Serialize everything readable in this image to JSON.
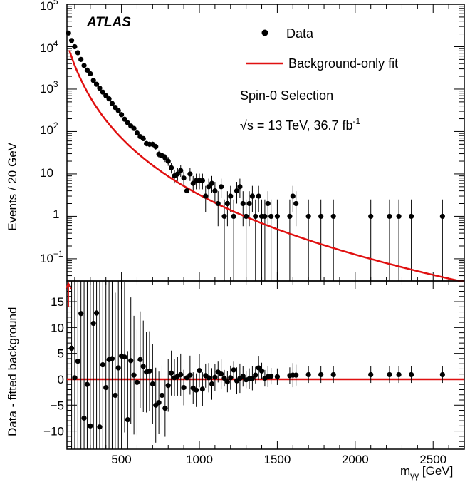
{
  "chart_data": [
    {
      "type": "scatter",
      "panel": "main",
      "scale_y": "log",
      "ylabel": "Events / 20 GeV",
      "xlim": [
        150,
        2700
      ],
      "ylim": [
        0.03,
        100000
      ],
      "ytick_labels": {
        "tick_100k": {
          "base": "10",
          "exp": "5"
        },
        "tick_10k": {
          "base": "10",
          "exp": "4"
        },
        "tick_1k": {
          "base": "10",
          "exp": "3"
        },
        "tick_100": {
          "base": "10",
          "exp": "2"
        },
        "tick_10": "10",
        "tick_1": "1",
        "tick_0p1": {
          "base": "10",
          "exp": "−1"
        }
      },
      "experiment_label": "ATLAS",
      "legend": {
        "data": "Data",
        "fit": "Background-only fit"
      },
      "selection_text": "Spin-0 Selection",
      "energy_label": {
        "sqrt_sym": "√",
        "s_eq": "s = 13 TeV, 36.7 fb",
        "exp": "-1"
      },
      "fit_params": {
        "A": 20000,
        "x0": 150,
        "b": 10.5,
        "c": 0.62
      },
      "series": [
        {
          "name": "Data",
          "x": [
            160,
            180,
            200,
            220,
            240,
            260,
            280,
            300,
            320,
            340,
            360,
            380,
            400,
            420,
            440,
            460,
            480,
            500,
            520,
            540,
            560,
            580,
            600,
            620,
            640,
            660,
            680,
            700,
            720,
            740,
            760,
            780,
            800,
            820,
            840,
            860,
            880,
            900,
            920,
            940,
            960,
            980,
            1000,
            1020,
            1040,
            1060,
            1080,
            1100,
            1120,
            1140,
            1160,
            1180,
            1200,
            1220,
            1240,
            1260,
            1280,
            1300,
            1320,
            1340,
            1360,
            1380,
            1400,
            1420,
            1440,
            1460,
            1500,
            1580,
            1600,
            1620,
            1700,
            1780,
            1860,
            2100,
            2220,
            2280,
            2360,
            2560
          ],
          "y": [
            21000,
            14000,
            10000,
            7200,
            5000,
            3600,
            2800,
            2300,
            1600,
            1300,
            1050,
            850,
            700,
            590,
            460,
            370,
            310,
            250,
            195,
            160,
            135,
            118,
            92,
            76,
            68,
            52,
            50,
            50,
            44,
            29,
            27,
            24,
            20,
            14,
            9,
            10,
            12,
            8,
            4,
            10,
            6,
            7,
            7,
            7,
            3,
            5,
            6,
            4,
            2,
            5,
            1,
            2,
            3,
            1,
            4,
            5,
            2,
            1,
            2,
            3,
            1,
            3,
            1,
            1,
            2,
            1,
            1,
            1,
            3,
            2,
            1,
            1,
            1,
            1,
            1,
            1,
            1,
            1
          ],
          "color": "#000000"
        },
        {
          "name": "Background-only fit",
          "type": "line",
          "color": "#e01010"
        }
      ]
    },
    {
      "type": "scatter",
      "panel": "residual",
      "ylabel": "Data - fitted background",
      "xlabel": "m",
      "xlabel_sub": "γγ",
      "xlabel_unit": " [GeV]",
      "xlim": [
        150,
        2700
      ],
      "ylim": [
        -13.5,
        19
      ],
      "xtick_labels": [
        "500",
        "1000",
        "1500",
        "2000",
        "2500"
      ],
      "xticks": [
        500,
        1000,
        1500,
        2000,
        2500
      ],
      "ytick_labels": [
        "15",
        "10",
        "5",
        "0",
        "−5",
        "−10"
      ],
      "yticks": [
        15,
        10,
        5,
        0,
        -5,
        -10
      ],
      "arrow_x": 160,
      "arrow_color": "#e01010",
      "zero_line_color": "#e01010",
      "series": [
        {
          "name": "Data",
          "x": [
            180,
            200,
            220,
            240,
            260,
            280,
            300,
            320,
            340,
            360,
            380,
            400,
            420,
            440,
            460,
            480,
            500,
            520,
            540,
            560,
            580,
            600,
            620,
            640,
            660,
            680,
            700,
            720,
            740,
            760,
            780,
            800,
            820,
            840,
            860,
            880,
            900,
            920,
            940,
            960,
            980,
            1000,
            1020,
            1040,
            1060,
            1080,
            1100,
            1120,
            1140,
            1160,
            1180,
            1200,
            1220,
            1240,
            1260,
            1280,
            1300,
            1320,
            1340,
            1360,
            1380,
            1400,
            1420,
            1440,
            1460,
            1500,
            1580,
            1600,
            1620,
            1700,
            1780,
            1860,
            2100,
            2220,
            2280,
            2360,
            2560
          ],
          "y": [
            6,
            0.3,
            3.5,
            12.7,
            -7.5,
            -1,
            -9,
            10.8,
            12.8,
            -9.2,
            2.8,
            -1.6,
            3.8,
            4,
            -3.1,
            2.2,
            4.5,
            4.3,
            -7.8,
            3.6,
            0.8,
            -0.6,
            3.8,
            2.5,
            1.4,
            1.6,
            -0.9,
            -5,
            -4.5,
            -3.1,
            -5.6,
            -1.2,
            1.2,
            0.3,
            0.6,
            0.9,
            -1.6,
            0.3,
            0.8,
            -1.7,
            -2.1,
            1.7,
            -1.9,
            0.7,
            0.3,
            -0.9,
            0.4,
            1.4,
            1,
            0.2,
            -0.5,
            0.3,
            1.8,
            -0.3,
            0.2,
            0.6,
            -0.1,
            0.1,
            0.2,
            0.8,
            2.2,
            1.6,
            0.2,
            0.5,
            0.6,
            0.5,
            0.7,
            0.8,
            0.8,
            0.9,
            0.9,
            0.9,
            0.9,
            0.9,
            0.9,
            0.9,
            0.9
          ],
          "color": "#000000"
        }
      ]
    }
  ]
}
